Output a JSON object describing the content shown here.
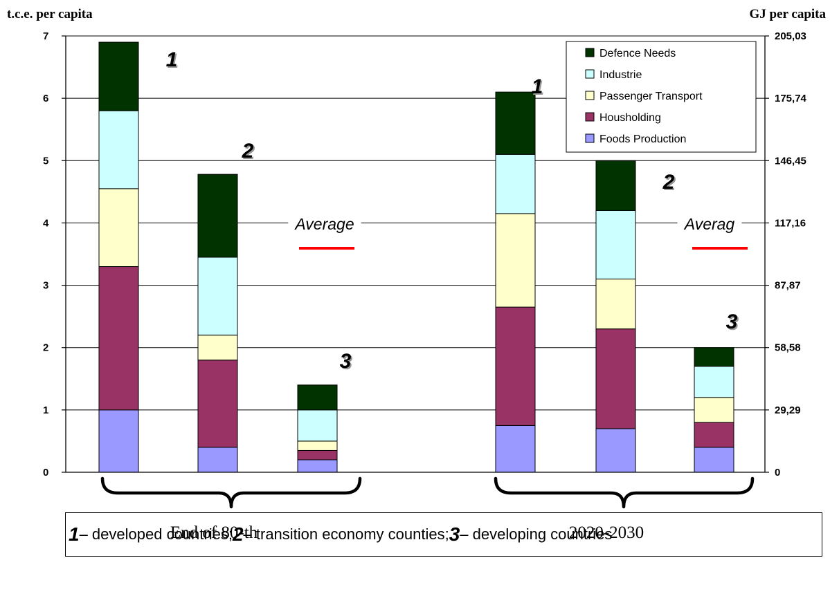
{
  "chart_data": {
    "type": "bar",
    "stacked": true,
    "left_axis_title": "t.c.e. per capita",
    "right_axis_title": "GJ per capita",
    "ylim": [
      0,
      7
    ],
    "left_ticks": [
      "0",
      "1",
      "2",
      "3",
      "4",
      "5",
      "6",
      "7"
    ],
    "right_ticks": [
      "0",
      "29,29",
      "58,58",
      "87,87",
      "117,16",
      "146,45",
      "175,74",
      "205,03"
    ],
    "grid": true,
    "legend_position": "top-right",
    "series": [
      {
        "name": "Foods Production",
        "color": "#9999ff"
      },
      {
        "name": "Housholding",
        "color": "#993366"
      },
      {
        "name": "Passenger Transport",
        "color": "#ffffcc"
      },
      {
        "name": "Industrie",
        "color": "#ccffff"
      },
      {
        "name": "Defence Needs",
        "color": "#003300"
      }
    ],
    "bars": [
      {
        "group": 0,
        "label": "1",
        "values": [
          1.0,
          2.3,
          1.25,
          1.25,
          1.1
        ]
      },
      {
        "group": 0,
        "label": "2",
        "values": [
          0.4,
          1.4,
          0.4,
          1.25,
          1.33
        ]
      },
      {
        "group": 0,
        "label": "3",
        "values": [
          0.2,
          0.15,
          0.15,
          0.5,
          0.4
        ]
      },
      {
        "group": 1,
        "label": "1",
        "values": [
          0.75,
          1.9,
          1.5,
          0.95,
          1.0
        ]
      },
      {
        "group": 1,
        "label": "2",
        "values": [
          0.7,
          1.6,
          0.8,
          1.1,
          0.8
        ]
      },
      {
        "group": 1,
        "label": "3",
        "values": [
          0.4,
          0.4,
          0.4,
          0.5,
          0.3
        ]
      }
    ],
    "groups": [
      "End of 80-th",
      "2020-2030"
    ],
    "average_labels": [
      "Average",
      "Averag"
    ],
    "average_line_color": "#ff0000"
  },
  "footnote": {
    "n1": "1",
    "t1": " – developed countries; ",
    "n2": "2",
    "t2": " – transition economy counties; ",
    "n3": "3",
    "t3": " – developing countries"
  }
}
